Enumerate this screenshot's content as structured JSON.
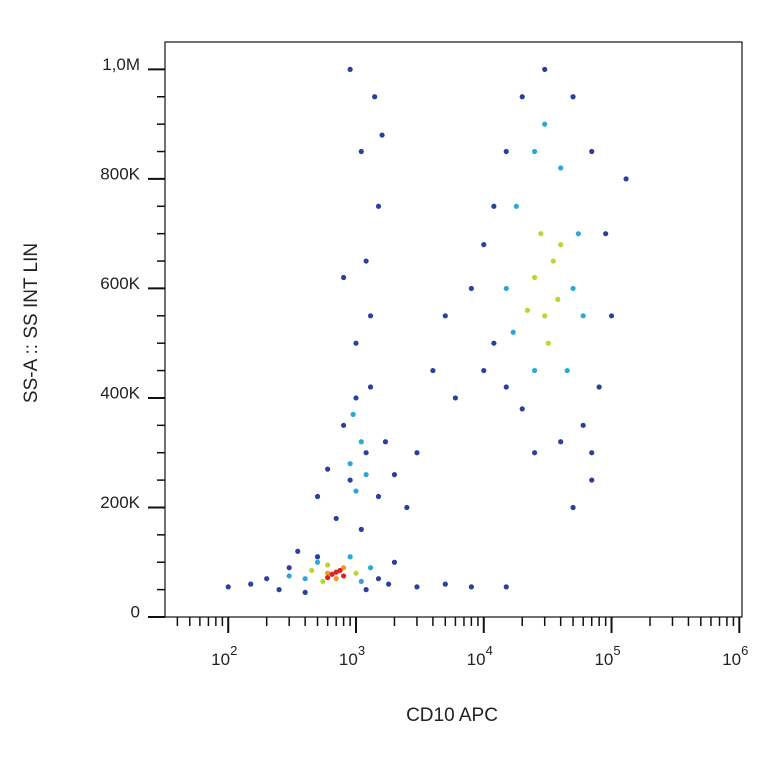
{
  "chart_data": {
    "type": "scatter",
    "xlabel": "CD10 APC",
    "ylabel": "SS-A :: SS INT LIN",
    "xscale": "log",
    "xlim": [
      32,
      1050000
    ],
    "ylim": [
      0,
      1050000
    ],
    "xticks": [
      {
        "value": 100,
        "label": "10",
        "exponent": "2"
      },
      {
        "value": 1000,
        "label": "10",
        "exponent": "3"
      },
      {
        "value": 10000,
        "label": "10",
        "exponent": "4"
      },
      {
        "value": 100000,
        "label": "10",
        "exponent": "5"
      },
      {
        "value": 1000000,
        "label": "10",
        "exponent": "6"
      }
    ],
    "xminorticks": [
      40,
      50,
      60,
      70,
      80,
      90,
      200,
      300,
      400,
      500,
      600,
      700,
      800,
      900,
      2000,
      3000,
      4000,
      5000,
      6000,
      7000,
      8000,
      9000,
      20000,
      30000,
      40000,
      50000,
      60000,
      70000,
      80000,
      90000,
      200000,
      300000,
      400000,
      500000,
      600000,
      700000,
      800000,
      900000
    ],
    "yticks": [
      0,
      {
        "value": 200000,
        "label": "200K"
      },
      {
        "value": 400000,
        "label": "400K"
      },
      {
        "value": 600000,
        "label": "600K"
      },
      {
        "value": 800000,
        "label": "800K"
      },
      {
        "value": 1000000,
        "label": "1,0M"
      }
    ],
    "yminorticks": [
      50000,
      100000,
      150000,
      250000,
      300000,
      350000,
      450000,
      500000,
      550000,
      650000,
      700000,
      750000,
      850000,
      900000,
      950000
    ],
    "series": [
      {
        "color": "#2b3f9e",
        "x": [
          150,
          200,
          250,
          300,
          400,
          500,
          1200,
          1500,
          1800,
          100,
          350,
          2000,
          3000,
          5000,
          8000,
          15000,
          700,
          900,
          1200,
          1500,
          800,
          1000,
          1300,
          600,
          1700,
          1100,
          2000,
          500,
          1000,
          1200,
          1500,
          1100,
          1400,
          900,
          1600,
          800,
          1300,
          8000,
          10000,
          12000,
          15000,
          20000,
          30000,
          50000,
          70000,
          90000,
          100000,
          80000,
          60000,
          40000,
          20000,
          12000,
          10000,
          15000,
          25000,
          70000,
          5000,
          130000,
          6000,
          3000,
          4000,
          2500,
          50000,
          70000
        ],
        "values": [
          60000,
          70000,
          50000,
          90000,
          45000,
          110000,
          50000,
          70000,
          60000,
          55000,
          120000,
          100000,
          55000,
          60000,
          55000,
          55000,
          180000,
          250000,
          300000,
          220000,
          350000,
          400000,
          420000,
          270000,
          320000,
          160000,
          260000,
          220000,
          500000,
          650000,
          750000,
          850000,
          950000,
          1000000,
          880000,
          620000,
          550000,
          600000,
          450000,
          750000,
          850000,
          950000,
          1000000,
          950000,
          850000,
          700000,
          550000,
          420000,
          350000,
          320000,
          380000,
          500000,
          680000,
          420000,
          300000,
          300000,
          550000,
          800000,
          400000,
          300000,
          450000,
          200000,
          200000,
          250000
        ]
      },
      {
        "color": "#2ba8d8",
        "x": [
          400,
          500,
          900,
          1100,
          300,
          1300,
          900,
          1100,
          1000,
          1200,
          950,
          15000,
          18000,
          25000,
          40000,
          55000,
          60000,
          45000,
          25000,
          17000,
          30000,
          50000
        ],
        "values": [
          70000,
          100000,
          110000,
          65000,
          75000,
          90000,
          280000,
          320000,
          230000,
          260000,
          370000,
          600000,
          750000,
          850000,
          820000,
          700000,
          550000,
          450000,
          450000,
          520000,
          900000,
          600000
        ]
      },
      {
        "color": "#b9d634",
        "x": [
          450,
          600,
          1000,
          550,
          25000,
          30000,
          35000,
          28000,
          38000,
          22000,
          32000,
          40000
        ],
        "values": [
          85000,
          95000,
          80000,
          65000,
          620000,
          550000,
          650000,
          700000,
          580000,
          560000,
          500000,
          680000
        ]
      },
      {
        "color": "#f29a1f",
        "x": [
          600,
          800,
          700
        ],
        "values": [
          80000,
          90000,
          70000
        ]
      },
      {
        "color": "#e3201c",
        "x": [
          650,
          750,
          700,
          800,
          600
        ],
        "values": [
          78000,
          85000,
          82000,
          75000,
          72000
        ]
      }
    ]
  }
}
